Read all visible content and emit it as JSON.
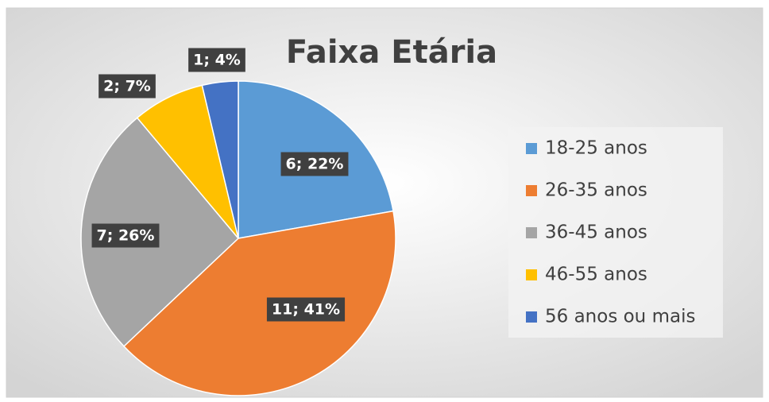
{
  "chart_data": {
    "type": "pie",
    "title": "Faixa Etária",
    "categories": [
      "18-25 anos",
      "26-35 anos",
      "36-45 anos",
      "46-55 anos",
      "56 anos ou mais"
    ],
    "values": [
      6,
      11,
      7,
      2,
      1
    ],
    "value_labels": [
      "6; 22%",
      "11; 41%",
      "7; 26%",
      "2; 7%",
      "1; 4%"
    ],
    "colors": [
      "#5b9bd5",
      "#ed7d31",
      "#a5a5a5",
      "#ffc000",
      "#4472c4"
    ],
    "legend": "right"
  }
}
